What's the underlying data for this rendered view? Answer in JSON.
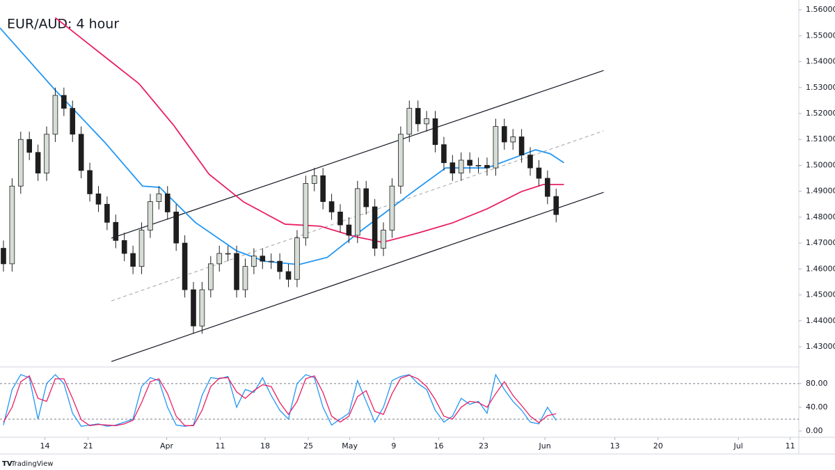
{
  "chart_data": {
    "type": "candlestick",
    "title": "EUR/AUD: 4 hour",
    "source": "TradingView",
    "up_color": "#d6ddd6",
    "down_color": "#1e1e1e",
    "outline_color": "#1e1e1e",
    "x": [
      0.4,
      1.4,
      2.4,
      3.4,
      4.4,
      5.4,
      6.4,
      7.4,
      8.4,
      9.4,
      10.4,
      11.4,
      12.4,
      13.4,
      14.4,
      15.4,
      16.4,
      17.4,
      18.4,
      19.4,
      20.4,
      21.4,
      22.4,
      23.4,
      24.4,
      25.4,
      26.4,
      27.4,
      28.4,
      29.4,
      30.4,
      31.4,
      32.4,
      33.4,
      34.4,
      35.4,
      36.4,
      37.4,
      38.4,
      39.4,
      40.4,
      41.4,
      42.4,
      43.4,
      44.4,
      45.4,
      46.4,
      47.4,
      48.4,
      49.4,
      50.4,
      51.4,
      52.4,
      53.4,
      54.4,
      55.4,
      56.4,
      57.4,
      58.4,
      59.4,
      60.4,
      61.4,
      62.4,
      63.4,
      64.4
    ],
    "open": [
      1.468,
      1.462,
      1.492,
      1.51,
      1.505,
      1.497,
      1.512,
      1.527,
      1.522,
      1.512,
      1.498,
      1.489,
      1.485,
      1.478,
      1.471,
      1.466,
      1.461,
      1.475,
      1.486,
      1.489,
      1.482,
      1.47,
      1.452,
      1.438,
      1.452,
      1.462,
      1.466,
      1.466,
      1.452,
      1.461,
      1.465,
      1.463,
      1.463,
      1.459,
      1.456,
      1.472,
      1.493,
      1.496,
      1.486,
      1.482,
      1.477,
      1.473,
      1.491,
      1.484,
      1.468,
      1.475,
      1.492,
      1.512,
      1.522,
      1.516,
      1.518,
      1.508,
      1.501,
      1.497,
      1.502,
      1.5,
      1.5,
      1.499,
      1.515,
      1.509,
      1.511,
      1.504,
      1.499,
      1.495,
      1.488
    ],
    "high": [
      1.471,
      1.495,
      1.513,
      1.513,
      1.508,
      1.515,
      1.53,
      1.53,
      1.525,
      1.515,
      1.501,
      1.492,
      1.488,
      1.481,
      1.474,
      1.469,
      1.478,
      1.489,
      1.492,
      1.492,
      1.485,
      1.473,
      1.455,
      1.455,
      1.465,
      1.469,
      1.469,
      1.469,
      1.464,
      1.468,
      1.468,
      1.466,
      1.466,
      1.462,
      1.475,
      1.496,
      1.499,
      1.499,
      1.489,
      1.485,
      1.48,
      1.494,
      1.494,
      1.487,
      1.478,
      1.495,
      1.515,
      1.525,
      1.525,
      1.521,
      1.521,
      1.511,
      1.504,
      1.505,
      1.505,
      1.503,
      1.503,
      1.518,
      1.518,
      1.514,
      1.514,
      1.507,
      1.502,
      1.498,
      1.491
    ],
    "low": [
      1.459,
      1.459,
      1.489,
      1.502,
      1.494,
      1.494,
      1.509,
      1.519,
      1.509,
      1.495,
      1.486,
      1.482,
      1.475,
      1.468,
      1.463,
      1.458,
      1.458,
      1.472,
      1.483,
      1.479,
      1.467,
      1.449,
      1.435,
      1.435,
      1.449,
      1.459,
      1.463,
      1.449,
      1.449,
      1.458,
      1.46,
      1.46,
      1.456,
      1.453,
      1.453,
      1.469,
      1.49,
      1.483,
      1.479,
      1.474,
      1.47,
      1.47,
      1.481,
      1.465,
      1.465,
      1.472,
      1.489,
      1.509,
      1.513,
      1.513,
      1.505,
      1.498,
      1.494,
      1.494,
      1.497,
      1.497,
      1.496,
      1.496,
      1.506,
      1.506,
      1.501,
      1.496,
      1.492,
      1.485,
      1.478
    ],
    "close": [
      1.462,
      1.492,
      1.51,
      1.505,
      1.497,
      1.512,
      1.527,
      1.522,
      1.512,
      1.498,
      1.489,
      1.485,
      1.478,
      1.471,
      1.466,
      1.461,
      1.475,
      1.486,
      1.489,
      1.482,
      1.47,
      1.452,
      1.438,
      1.452,
      1.462,
      1.466,
      1.466,
      1.452,
      1.461,
      1.465,
      1.463,
      1.463,
      1.459,
      1.456,
      1.472,
      1.493,
      1.496,
      1.486,
      1.482,
      1.477,
      1.473,
      1.491,
      1.484,
      1.468,
      1.475,
      1.492,
      1.512,
      1.522,
      1.516,
      1.518,
      1.508,
      1.501,
      1.497,
      1.502,
      1.5,
      1.5,
      1.499,
      1.515,
      1.509,
      1.511,
      1.504,
      1.499,
      1.495,
      1.488,
      1.481
    ],
    "xlim": [
      0,
      92.5
    ],
    "xticks": [
      {
        "value": 5.2,
        "label": "14"
      },
      {
        "value": 10.2,
        "label": "21"
      },
      {
        "value": 19.3,
        "label": "Apr"
      },
      {
        "value": 25.5,
        "label": "11"
      },
      {
        "value": 30.7,
        "label": "18"
      },
      {
        "value": 35.7,
        "label": "25"
      },
      {
        "value": 40.5,
        "label": "May"
      },
      {
        "value": 45.6,
        "label": "9"
      },
      {
        "value": 50.8,
        "label": "16"
      },
      {
        "value": 56.0,
        "label": "23"
      },
      {
        "value": 63.1,
        "label": "Jun"
      },
      {
        "value": 71.2,
        "label": "13"
      },
      {
        "value": 76.2,
        "label": "20"
      },
      {
        "value": 85.5,
        "label": "Jul"
      },
      {
        "value": 91.5,
        "label": "11"
      }
    ],
    "ylim": [
      1.4222,
      1.5638
    ],
    "yticks": [
      {
        "value": 1.56,
        "label": "1.56000"
      },
      {
        "value": 1.55,
        "label": "1.55000"
      },
      {
        "value": 1.54,
        "label": "1.54000"
      },
      {
        "value": 1.53,
        "label": "1.53000"
      },
      {
        "value": 1.52,
        "label": "1.52000"
      },
      {
        "value": 1.51,
        "label": "1.51000"
      },
      {
        "value": 1.5,
        "label": "1.50000"
      },
      {
        "value": 1.49,
        "label": "1.49000"
      },
      {
        "value": 1.48,
        "label": "1.48000"
      },
      {
        "value": 1.47,
        "label": "1.47000"
      },
      {
        "value": 1.46,
        "label": "1.46000"
      },
      {
        "value": 1.45,
        "label": "1.45000"
      },
      {
        "value": 1.44,
        "label": "1.44000"
      },
      {
        "value": 1.43,
        "label": "1.43000"
      }
    ],
    "overlays": [
      {
        "color": "#2196f3",
        "x": [
          0,
          6.4,
          12.1,
          16.5,
          18.5,
          22.6,
          27.4,
          30.6,
          34.6,
          37.9,
          41.9,
          45.1,
          48.3,
          51.6,
          56.4,
          59.6,
          62.0,
          63.7,
          65.3
        ],
        "values": [
          1.553,
          1.529,
          1.509,
          1.492,
          1.4915,
          1.478,
          1.467,
          1.463,
          1.4617,
          1.4645,
          1.475,
          1.483,
          1.491,
          1.499,
          1.499,
          1.503,
          1.506,
          1.5045,
          1.501
        ]
      },
      {
        "color": "#e91e63",
        "x": [
          6.4,
          12.1,
          16.1,
          20.1,
          24.2,
          28.2,
          33.0,
          37.1,
          41.1,
          44.3,
          48.3,
          52.4,
          56.4,
          60.4,
          62.9,
          65.3
        ],
        "values": [
          1.557,
          1.542,
          1.5315,
          1.5155,
          1.4966,
          1.4859,
          1.4773,
          1.4765,
          1.4725,
          1.4703,
          1.4738,
          1.4778,
          1.4832,
          1.4899,
          1.4926,
          1.4926
        ]
      }
    ],
    "trendlines": [
      {
        "x": [
          12.9,
          69.9
        ],
        "y": [
          1.4719,
          1.5366
        ],
        "color": "#131722",
        "dashed": false
      },
      {
        "x": [
          12.9,
          69.9
        ],
        "y": [
          1.4477,
          1.5133
        ],
        "color": "#b0b0b0",
        "dashed": true
      },
      {
        "x": [
          12.9,
          69.9
        ],
        "y": [
          1.4243,
          1.4896
        ],
        "color": "#131722",
        "dashed": false
      }
    ],
    "indicator": {
      "type": "line",
      "ylim": [
        -10.6,
        108
      ],
      "yticks": [
        {
          "value": 80,
          "label": "80.00"
        },
        {
          "value": 40,
          "label": "40.00"
        },
        {
          "value": 0,
          "label": "0.00"
        }
      ],
      "levels": [
        80,
        20
      ],
      "series": [
        {
          "color": "#2196f3",
          "values": [
            10,
            70,
            95,
            90,
            20,
            80,
            95,
            80,
            30,
            8,
            10,
            12,
            8,
            10,
            15,
            20,
            75,
            90,
            85,
            40,
            10,
            8,
            10,
            60,
            90,
            88,
            92,
            40,
            70,
            65,
            90,
            60,
            35,
            20,
            80,
            95,
            90,
            40,
            10,
            20,
            30,
            85,
            50,
            15,
            40,
            85,
            92,
            95,
            80,
            70,
            35,
            15,
            25,
            55,
            45,
            50,
            30,
            95,
            70,
            50,
            35,
            15,
            12,
            40,
            18
          ]
        },
        {
          "color": "#e91e63",
          "values": [
            15,
            40,
            83,
            93,
            55,
            50,
            88,
            88,
            55,
            19,
            9,
            11,
            10,
            9,
            12,
            18,
            48,
            83,
            88,
            63,
            25,
            9,
            9,
            35,
            75,
            89,
            90,
            66,
            55,
            68,
            78,
            75,
            48,
            28,
            50,
            88,
            93,
            65,
            25,
            15,
            25,
            58,
            68,
            33,
            28,
            63,
            89,
            94,
            88,
            75,
            53,
            25,
            20,
            40,
            50,
            48,
            40,
            63,
            83,
            60,
            43,
            25,
            14,
            26,
            29
          ]
        }
      ]
    }
  }
}
